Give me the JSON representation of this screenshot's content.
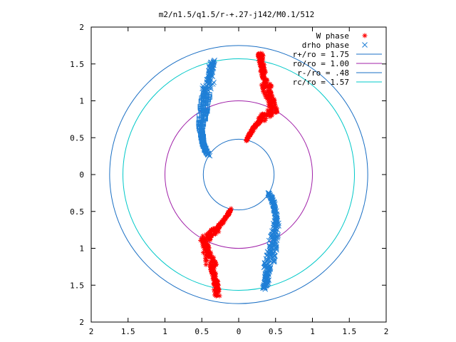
{
  "chart_data": {
    "type": "scatter",
    "title": "m2/n1.5/q1.5/r-+.27-j142/M0.1/512",
    "xlim": [
      -2,
      2
    ],
    "ylim": [
      -2,
      2
    ],
    "x_ticks": [
      "2",
      "1.5",
      "1",
      "0.5",
      "0",
      "0.5",
      "1",
      "1.5",
      "2"
    ],
    "y_ticks": [
      "2",
      "1.5",
      "1",
      "0.5",
      "0",
      "0.5",
      "1",
      "1.5",
      "2"
    ],
    "grid": false,
    "legend_position": "top-right",
    "series": [
      {
        "name": "W phase",
        "marker": "plus",
        "color": "#ff0000",
        "arms": [
          {
            "r": [
              0.48,
              1.0,
              1.1,
              1.2,
              1.35,
              1.5,
              1.67
            ],
            "theta_deg": [
              -103,
              -118,
              -113,
              -109,
              -105,
              -102,
              -100
            ]
          },
          {
            "r": [
              0.48,
              1.0,
              1.1,
              1.2,
              1.35,
              1.5,
              1.67
            ],
            "theta_deg": [
              77,
              62,
              67,
              71,
              75,
              78,
              80
            ]
          }
        ]
      },
      {
        "name": "drho phase",
        "marker": "cross",
        "color": "#1f7fd6",
        "arms": [
          {
            "r": [
              0.48,
              0.75,
              1.0,
              1.2,
              1.4,
              1.58
            ],
            "theta_deg": [
              148,
              132,
              118,
              111,
              106,
              103
            ]
          },
          {
            "r": [
              0.48,
              0.75,
              1.0,
              1.2,
              1.4,
              1.58
            ],
            "theta_deg": [
              -32,
              -48,
              -62,
              -69,
              -74,
              -77
            ]
          }
        ]
      },
      {
        "name": "r+/ro = 1.75",
        "kind": "circle",
        "radius": 1.75,
        "color": "#1a6fc4"
      },
      {
        "name": "ro/ro = 1.00",
        "kind": "circle",
        "radius": 1.0,
        "color": "#a020a8"
      },
      {
        "name": "r-/ro = .48",
        "kind": "circle",
        "radius": 0.48,
        "color": "#1a6fc4"
      },
      {
        "name": "rc/ro = 1.57",
        "kind": "circle",
        "radius": 1.57,
        "color": "#00c8c8"
      }
    ]
  }
}
